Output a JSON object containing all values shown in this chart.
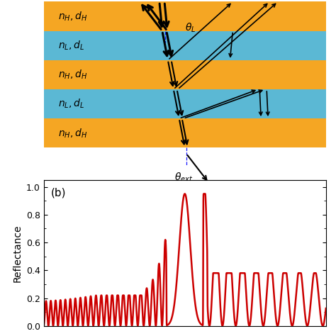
{
  "fig_width": 4.74,
  "fig_height": 4.74,
  "dpi": 100,
  "top_panel": {
    "layer_colors": [
      "#F5A623",
      "#5BB8D4",
      "#F5A623",
      "#5BB8D4",
      "#F5A623"
    ],
    "layer_labels": [
      "$n_H, d_H$",
      "$n_L, d_L$",
      "$n_H, d_H$",
      "$n_L, d_L$",
      "$n_H, d_H$"
    ],
    "bg_color": "#F5A623"
  },
  "bottom_panel": {
    "label": "(b)",
    "ylabel": "Reflectance",
    "yticks": [
      0.0,
      0.2,
      0.4,
      0.6,
      0.8,
      1.0
    ],
    "ylim": [
      0.0,
      1.05
    ],
    "line_color": "#CC0000",
    "line_width": 1.8
  }
}
